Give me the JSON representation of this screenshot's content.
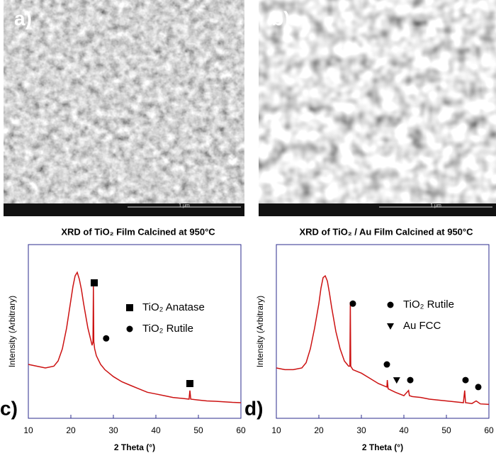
{
  "panels": {
    "images": [
      {
        "label": "a)",
        "scale": "1 μm"
      },
      {
        "label": "b)",
        "scale": "1 μm"
      }
    ],
    "chart_labels": [
      "c)",
      "d)"
    ]
  },
  "chart_data": [
    {
      "type": "line",
      "title": "XRD of TiO₂ Film Calcined at 950°C",
      "x_label": "2 Theta (°)",
      "y_label": "Intensity (Arbitrary)",
      "color": "#cc1111",
      "frame_color": "#2b2b8c",
      "xlim": [
        10,
        60
      ],
      "xticks": [
        10,
        20,
        30,
        40,
        50,
        60
      ],
      "ylim": [
        0,
        100
      ],
      "x": [
        10,
        12,
        14,
        16,
        17,
        18,
        19,
        20,
        20.5,
        21,
        21.5,
        22,
        22.5,
        23,
        24,
        25,
        25.2,
        25.3,
        25.4,
        25.6,
        26,
        27,
        28,
        29,
        30,
        32,
        34,
        36,
        38,
        40,
        42,
        44,
        46,
        47.8,
        48,
        48.2,
        50,
        52,
        54,
        56,
        58,
        60
      ],
      "values": [
        31,
        30,
        29,
        30,
        33,
        40,
        52,
        68,
        76,
        82,
        84,
        80,
        74,
        66,
        52,
        42,
        44,
        76,
        44,
        40,
        36,
        31,
        28,
        26,
        24,
        21,
        19,
        17,
        15,
        14,
        13,
        12,
        11.5,
        11,
        16,
        11,
        10.5,
        10,
        9.8,
        9.5,
        9.2,
        9
      ],
      "markers": [
        {
          "name": "TiO₂ Anatase",
          "shape": "square",
          "x": [
            25.5,
            48
          ],
          "values": [
            78,
            20
          ]
        },
        {
          "name": "TiO₂ Rutile",
          "shape": "circle",
          "x": [
            28.3
          ],
          "values": [
            46
          ]
        }
      ]
    },
    {
      "type": "line",
      "title": "XRD of TiO₂ / Au Film Calcined at 950°C",
      "x_label": "2 Theta (°)",
      "y_label": "Intensity (Arbitrary)",
      "color": "#cc1111",
      "frame_color": "#2b2b8c",
      "xlim": [
        10,
        60
      ],
      "xticks": [
        10,
        20,
        30,
        40,
        50,
        60
      ],
      "ylim": [
        0,
        100
      ],
      "x": [
        10,
        12,
        14,
        16,
        17,
        18,
        19,
        20,
        20.5,
        21,
        21.5,
        22,
        22.5,
        23,
        24,
        25,
        26,
        27,
        27.3,
        27.4,
        27.5,
        28,
        30,
        32,
        34,
        36,
        36.1,
        36.3,
        38,
        40,
        41.1,
        41.3,
        42,
        44,
        46,
        50,
        54,
        54.3,
        54.5,
        56,
        57,
        58,
        60
      ],
      "values": [
        29,
        28,
        28,
        29,
        32,
        40,
        52,
        66,
        75,
        81,
        82,
        79,
        72,
        64,
        50,
        40,
        33,
        30,
        30,
        67,
        30,
        28,
        26,
        23,
        20,
        18,
        22,
        17,
        15,
        13,
        16,
        13,
        12.5,
        12,
        11,
        10,
        9,
        16,
        9,
        8.5,
        10,
        8.3,
        8
      ],
      "markers": [
        {
          "name": "TiO₂ Rutile",
          "shape": "circle",
          "x": [
            28,
            36,
            41.5,
            54.5,
            57.5
          ],
          "values": [
            66,
            31,
            22,
            22,
            18
          ]
        },
        {
          "name": "Au FCC",
          "shape": "triangle",
          "x": [
            38.3
          ],
          "values": [
            22
          ]
        }
      ]
    }
  ]
}
